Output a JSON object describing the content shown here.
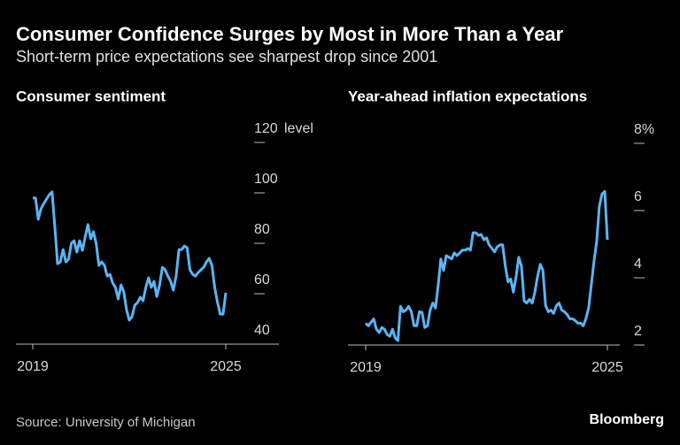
{
  "title": "Consumer Confidence Surges by Most in More Than a Year",
  "subtitle": "Short-term price expectations see sharpest drop since 2001",
  "source": "Source: University of Michigan",
  "brand": "Bloomberg",
  "chart_data": [
    {
      "type": "line",
      "title": "Consumer sentiment",
      "color": "#5ab4f5",
      "categories": [
        "2019",
        null,
        null,
        null,
        null,
        null,
        null,
        null,
        null,
        null,
        null,
        null,
        null,
        null,
        null,
        null,
        null,
        null,
        null,
        null,
        null,
        null,
        null,
        null,
        null,
        null,
        null,
        null,
        null,
        null,
        null,
        null,
        null,
        null,
        null,
        null,
        null,
        null,
        null,
        null,
        null,
        null,
        null,
        null,
        null,
        null,
        null,
        null,
        null,
        null,
        null,
        null,
        null,
        null,
        null,
        null,
        null,
        null,
        null,
        null,
        null,
        null,
        null,
        null,
        null,
        null,
        null,
        null,
        null,
        null,
        "2025"
      ],
      "values": [
        98,
        98,
        89.5,
        93.7,
        95.8,
        97.5,
        99.3,
        100.4,
        86.7,
        71.9,
        72.6,
        77.5,
        72.6,
        73.7,
        80,
        81,
        76.5,
        81,
        77.2,
        82.5,
        87.4,
        81.8,
        84.6,
        80,
        71.2,
        72.6,
        71.2,
        67,
        67.7,
        64.2,
        62.5,
        57.9,
        63.5,
        60.7,
        53.7,
        49.5,
        50.9,
        55.4,
        56.5,
        58.6,
        57.2,
        62.5,
        66.3,
        62.5,
        64.9,
        58.9,
        63.5,
        70.5,
        69.5,
        67,
        64.9,
        61.4,
        67,
        77.5,
        77.5,
        78.9,
        78.2,
        69.5,
        67.7,
        67,
        68.4,
        69.5,
        70.5,
        72.6,
        74,
        71.2,
        62.5,
        56.5,
        51.9,
        51.9,
        60.4
      ],
      "ylim": [
        40,
        120
      ],
      "yticks": [
        40,
        60,
        80,
        100,
        120
      ],
      "y_unit": "level"
    },
    {
      "type": "line",
      "title": "Year-ahead inflation expectations",
      "color": "#5ab4f5",
      "categories": [
        "2019",
        null,
        null,
        null,
        null,
        null,
        null,
        null,
        null,
        null,
        null,
        null,
        null,
        null,
        null,
        null,
        null,
        null,
        null,
        null,
        null,
        null,
        null,
        null,
        null,
        null,
        null,
        null,
        null,
        null,
        null,
        null,
        null,
        null,
        null,
        null,
        null,
        null,
        null,
        null,
        null,
        null,
        null,
        null,
        null,
        null,
        null,
        null,
        null,
        null,
        null,
        null,
        null,
        null,
        null,
        null,
        null,
        null,
        null,
        null,
        null,
        null,
        null,
        null,
        null,
        null,
        null,
        null,
        null,
        null,
        null,
        null,
        null,
        null,
        null,
        null,
        null,
        null,
        null,
        null,
        null,
        null,
        null,
        null,
        null,
        null,
        null,
        null,
        null,
        null,
        "2025"
      ],
      "values": [
        2.65,
        2.57,
        2.68,
        2.78,
        2.47,
        2.37,
        2.52,
        2.47,
        2.31,
        2.26,
        2.47,
        2.21,
        2.13,
        3.15,
        2.99,
        3.04,
        3.15,
        2.99,
        2.57,
        2.57,
        2.99,
        2.97,
        2.52,
        2.57,
        3.04,
        3.25,
        3.1,
        3.78,
        4.56,
        4.22,
        4.66,
        4.61,
        4.56,
        4.74,
        4.66,
        4.74,
        4.82,
        4.82,
        4.87,
        4.82,
        5.34,
        5.34,
        5.26,
        5.29,
        5.13,
        5.19,
        4.98,
        4.87,
        4.77,
        4.92,
        4.98,
        4.98,
        4.35,
        3.88,
        3.96,
        3.57,
        4.04,
        4.61,
        4.35,
        3.31,
        3.25,
        3.36,
        3.25,
        3.57,
        4.04,
        4.4,
        4.22,
        3.17,
        2.99,
        3.04,
        2.94,
        3.17,
        3.25,
        3.04,
        2.99,
        2.91,
        2.78,
        2.78,
        2.73,
        2.65,
        2.65,
        2.57,
        2.78,
        3.1,
        3.78,
        4.48,
        5.08,
        6.13,
        6.49,
        6.57,
        5.13
      ],
      "ylim": [
        2,
        8
      ],
      "yticks": [
        2,
        4,
        6,
        {
          "value": 8,
          "label": "8%"
        }
      ]
    }
  ]
}
